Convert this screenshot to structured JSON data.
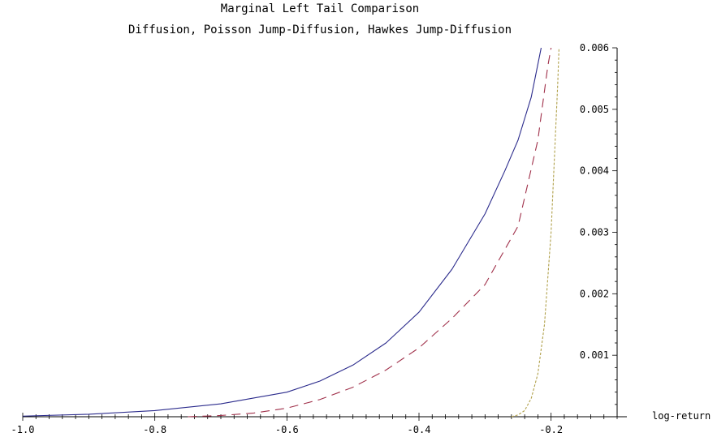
{
  "chart_data": {
    "type": "line",
    "title": "Marginal Left Tail Comparison",
    "subtitle": "Diffusion, Poisson Jump-Diffusion, Hawkes Jump-Diffusion",
    "xlabel": "log-return",
    "ylabel": "",
    "xlim": [
      -1.0,
      -0.1
    ],
    "ylim": [
      0,
      0.006
    ],
    "x_ticks": [
      "-1.0",
      "-0.8",
      "-0.6",
      "-0.4",
      "-0.2"
    ],
    "y_ticks": [
      "0.001",
      "0.002",
      "0.003",
      "0.004",
      "0.005",
      "0.006"
    ],
    "grid": false,
    "series": [
      {
        "color": "#2b2b8c",
        "dash": "solid",
        "x": [
          -1.0,
          -0.9,
          -0.8,
          -0.7,
          -0.6,
          -0.55,
          -0.5,
          -0.45,
          -0.4,
          -0.35,
          -0.3,
          -0.27,
          -0.25,
          -0.23,
          -0.215
        ],
        "y": [
          1e-05,
          4e-05,
          0.0001,
          0.00021,
          0.0004,
          0.00058,
          0.00084,
          0.0012,
          0.0017,
          0.0024,
          0.0033,
          0.004,
          0.0045,
          0.0052,
          0.006
        ]
      },
      {
        "color": "#a0304a",
        "dash": "dashed",
        "x": [
          -0.75,
          -0.7,
          -0.65,
          -0.6,
          -0.55,
          -0.5,
          -0.45,
          -0.4,
          -0.35,
          -0.3,
          -0.25,
          -0.22,
          -0.205,
          -0.2
        ],
        "y": [
          0.0,
          2e-05,
          6e-05,
          0.00014,
          0.00028,
          0.00048,
          0.00076,
          0.00112,
          0.0016,
          0.00215,
          0.0031,
          0.0045,
          0.0057,
          0.006
        ]
      },
      {
        "color": "#b0a04a",
        "dash": "dotted",
        "x": [
          -0.26,
          -0.25,
          -0.24,
          -0.23,
          -0.22,
          -0.21,
          -0.2,
          -0.195,
          -0.19,
          -0.188
        ],
        "y": [
          0.0,
          3e-05,
          0.0001,
          0.0003,
          0.0007,
          0.0015,
          0.003,
          0.0042,
          0.0054,
          0.006
        ]
      }
    ]
  }
}
